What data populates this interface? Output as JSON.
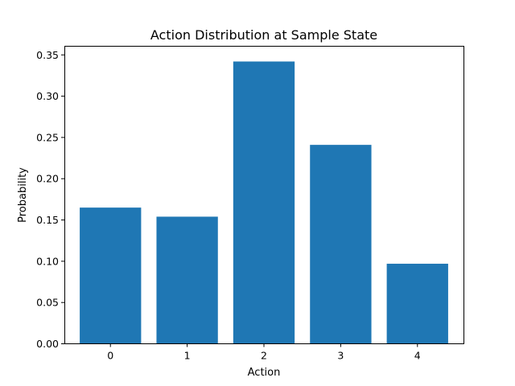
{
  "chart_data": {
    "type": "bar",
    "title": "Action Distribution at Sample State",
    "xlabel": "Action",
    "ylabel": "Probability",
    "categories": [
      "0",
      "1",
      "2",
      "3",
      "4"
    ],
    "values": [
      0.165,
      0.154,
      0.342,
      0.241,
      0.097
    ],
    "ylim": [
      0,
      0.36
    ],
    "yticks": [
      "0.00",
      "0.05",
      "0.10",
      "0.15",
      "0.20",
      "0.25",
      "0.30",
      "0.35"
    ],
    "bar_color": "#1f77b4",
    "grid": false,
    "legend": "none"
  }
}
